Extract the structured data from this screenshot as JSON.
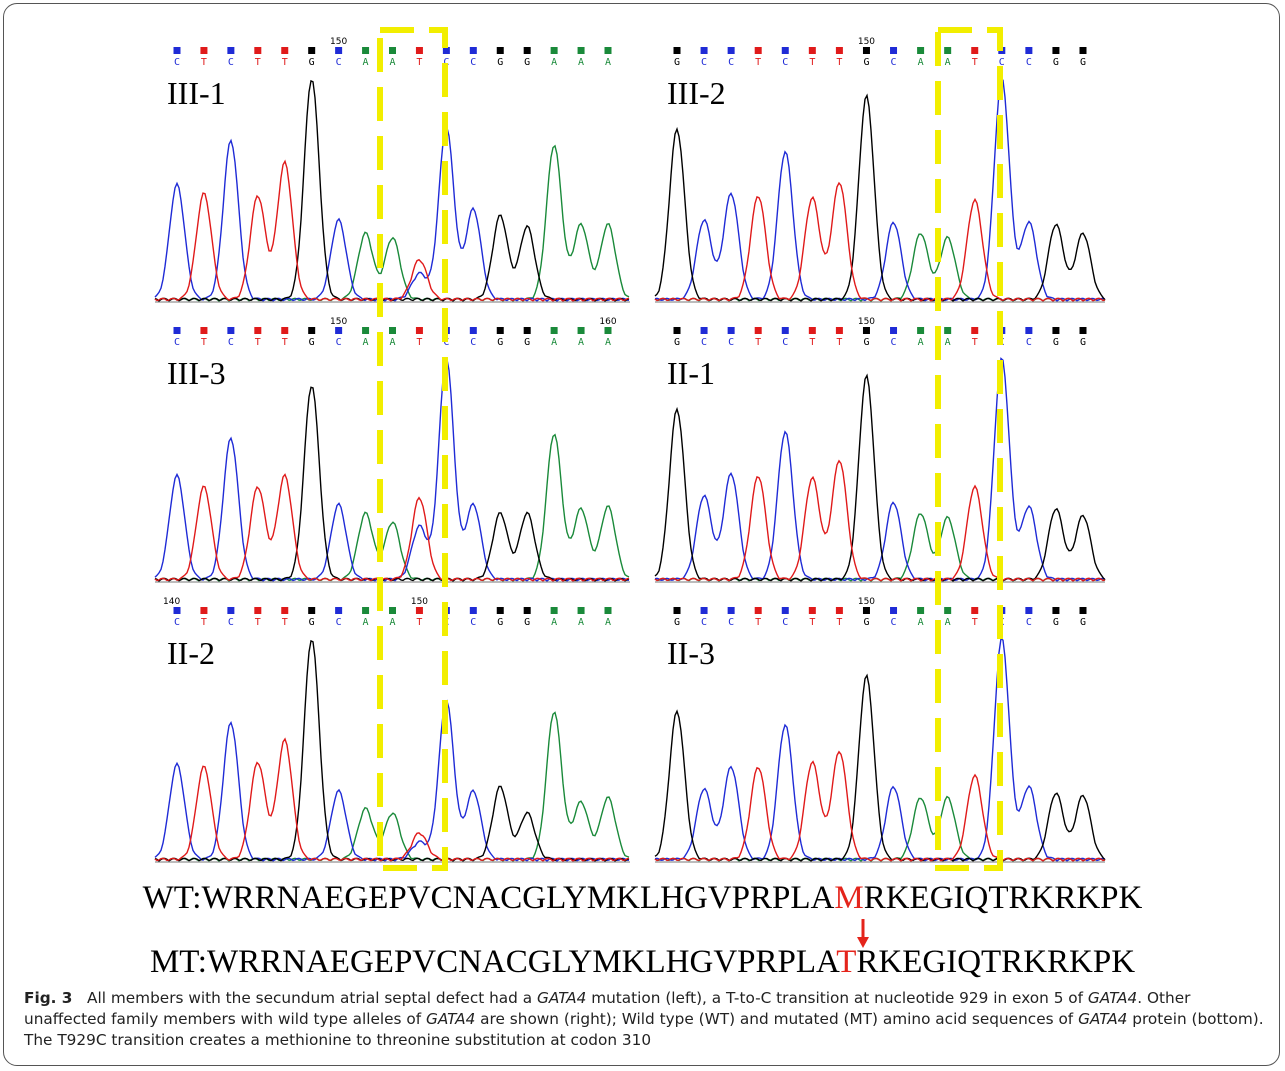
{
  "figure": {
    "panels": [
      {
        "id": "p1",
        "label": "III-1",
        "bases": "CTCTTGCAATCCGGAAA",
        "tick": "150",
        "tick_index": 6,
        "tick2": "",
        "tick2_index": -1,
        "start_tick": "",
        "heterozygous": true,
        "peaks": [
          {
            "b": "C",
            "h": 0.52
          },
          {
            "b": "T",
            "h": 0.48
          },
          {
            "b": "C",
            "h": 0.72
          },
          {
            "b": "T",
            "h": 0.47
          },
          {
            "b": "T",
            "h": 0.62
          },
          {
            "b": "G",
            "h": 1.0
          },
          {
            "b": "C",
            "h": 0.36
          },
          {
            "b": "A",
            "h": 0.3
          },
          {
            "b": "A",
            "h": 0.28
          },
          {
            "b": "T",
            "h": 0.18
          },
          {
            "b": "C",
            "h": 0.78
          },
          {
            "b": "C",
            "h": 0.41
          },
          {
            "b": "G",
            "h": 0.38
          },
          {
            "b": "G",
            "h": 0.33
          },
          {
            "b": "A",
            "h": 0.7
          },
          {
            "b": "A",
            "h": 0.34
          },
          {
            "b": "A",
            "h": 0.34
          }
        ]
      },
      {
        "id": "p2",
        "label": "III-2",
        "bases": "GCCTCTTGCAATCCGG",
        "tick": "150",
        "tick_index": 7,
        "tick2": "",
        "tick2_index": -1,
        "start_tick": "",
        "heterozygous": false,
        "peaks": [
          {
            "b": "G",
            "h": 0.77
          },
          {
            "b": "C",
            "h": 0.36
          },
          {
            "b": "C",
            "h": 0.48
          },
          {
            "b": "T",
            "h": 0.47
          },
          {
            "b": "C",
            "h": 0.67
          },
          {
            "b": "T",
            "h": 0.46
          },
          {
            "b": "T",
            "h": 0.53
          },
          {
            "b": "G",
            "h": 0.92
          },
          {
            "b": "C",
            "h": 0.35
          },
          {
            "b": "A",
            "h": 0.3
          },
          {
            "b": "A",
            "h": 0.28
          },
          {
            "b": "T",
            "h": 0.45
          },
          {
            "b": "C",
            "h": 1.0
          },
          {
            "b": "C",
            "h": 0.35
          },
          {
            "b": "G",
            "h": 0.34
          },
          {
            "b": "G",
            "h": 0.3
          }
        ]
      },
      {
        "id": "p3",
        "label": "III-3",
        "bases": "CTCTTGCAATCCGGAAA",
        "tick": "150",
        "tick_index": 6,
        "tick2": "160",
        "tick2_index": 16,
        "start_tick": "",
        "heterozygous": true,
        "peaks": [
          {
            "b": "C",
            "h": 0.47
          },
          {
            "b": "T",
            "h": 0.42
          },
          {
            "b": "C",
            "h": 0.64
          },
          {
            "b": "T",
            "h": 0.42
          },
          {
            "b": "T",
            "h": 0.47
          },
          {
            "b": "G",
            "h": 0.88
          },
          {
            "b": "C",
            "h": 0.34
          },
          {
            "b": "A",
            "h": 0.3
          },
          {
            "b": "A",
            "h": 0.26
          },
          {
            "b": "T",
            "h": 0.37
          },
          {
            "b": "C",
            "h": 1.0
          },
          {
            "b": "C",
            "h": 0.34
          },
          {
            "b": "G",
            "h": 0.3
          },
          {
            "b": "G",
            "h": 0.3
          },
          {
            "b": "A",
            "h": 0.66
          },
          {
            "b": "A",
            "h": 0.32
          },
          {
            "b": "A",
            "h": 0.33
          }
        ]
      },
      {
        "id": "p4",
        "label": "II-1",
        "bases": "GCCTCTTGCAATCCGG",
        "tick": "150",
        "tick_index": 7,
        "tick2": "",
        "tick2_index": -1,
        "start_tick": "",
        "heterozygous": false,
        "peaks": [
          {
            "b": "G",
            "h": 0.77
          },
          {
            "b": "C",
            "h": 0.38
          },
          {
            "b": "C",
            "h": 0.48
          },
          {
            "b": "T",
            "h": 0.47
          },
          {
            "b": "C",
            "h": 0.67
          },
          {
            "b": "T",
            "h": 0.46
          },
          {
            "b": "T",
            "h": 0.54
          },
          {
            "b": "G",
            "h": 0.92
          },
          {
            "b": "C",
            "h": 0.35
          },
          {
            "b": "A",
            "h": 0.3
          },
          {
            "b": "A",
            "h": 0.28
          },
          {
            "b": "T",
            "h": 0.42
          },
          {
            "b": "C",
            "h": 1.0
          },
          {
            "b": "C",
            "h": 0.33
          },
          {
            "b": "G",
            "h": 0.32
          },
          {
            "b": "G",
            "h": 0.29
          }
        ]
      },
      {
        "id": "p5",
        "label": "II-2",
        "bases": "CTCTTGCAATCCGGAAA",
        "tick": "150",
        "tick_index": 9,
        "tick2": "",
        "tick2_index": -1,
        "start_tick": "140",
        "heterozygous": true,
        "peaks": [
          {
            "b": "C",
            "h": 0.43
          },
          {
            "b": "T",
            "h": 0.42
          },
          {
            "b": "C",
            "h": 0.62
          },
          {
            "b": "T",
            "h": 0.44
          },
          {
            "b": "T",
            "h": 0.54
          },
          {
            "b": "G",
            "h": 1.0
          },
          {
            "b": "C",
            "h": 0.31
          },
          {
            "b": "A",
            "h": 0.23
          },
          {
            "b": "A",
            "h": 0.21
          },
          {
            "b": "T",
            "h": 0.12
          },
          {
            "b": "C",
            "h": 0.72
          },
          {
            "b": "C",
            "h": 0.31
          },
          {
            "b": "G",
            "h": 0.33
          },
          {
            "b": "G",
            "h": 0.21
          },
          {
            "b": "A",
            "h": 0.67
          },
          {
            "b": "A",
            "h": 0.26
          },
          {
            "b": "A",
            "h": 0.28
          }
        ]
      },
      {
        "id": "p6",
        "label": "II-3",
        "bases": "GCCTCTTGCAATCCGG",
        "tick": "150",
        "tick_index": 7,
        "tick2": "",
        "tick2_index": -1,
        "start_tick": "",
        "heterozygous": false,
        "peaks": [
          {
            "b": "G",
            "h": 0.67
          },
          {
            "b": "C",
            "h": 0.32
          },
          {
            "b": "C",
            "h": 0.42
          },
          {
            "b": "T",
            "h": 0.42
          },
          {
            "b": "C",
            "h": 0.61
          },
          {
            "b": "T",
            "h": 0.44
          },
          {
            "b": "T",
            "h": 0.49
          },
          {
            "b": "G",
            "h": 0.83
          },
          {
            "b": "C",
            "h": 0.33
          },
          {
            "b": "A",
            "h": 0.28
          },
          {
            "b": "A",
            "h": 0.28
          },
          {
            "b": "T",
            "h": 0.38
          },
          {
            "b": "C",
            "h": 1.0
          },
          {
            "b": "C",
            "h": 0.33
          },
          {
            "b": "G",
            "h": 0.3
          },
          {
            "b": "G",
            "h": 0.29
          }
        ]
      }
    ],
    "base_colors": {
      "A": "#1a8a3a",
      "C": "#1f2bd6",
      "G": "#000000",
      "T": "#e01a1a"
    },
    "box_color": "#f2ee00",
    "wt_prefix": "WT:WRRNAEGEPVCNACGLYMKLHGVPRPLA",
    "wt_mut": "M",
    "wt_suffix": "RKEGIQTRKRKPK",
    "mt_prefix": "MT:WRRNAEGEPVCNACGLYMKLHGVPRPLA",
    "mt_mut": "T",
    "mt_suffix": "RKEGIQTRKRKPK",
    "highlight_color": "#e4241b"
  },
  "caption": {
    "fig_label": "Fig. 3",
    "t1": "All members with the secundum atrial septal defect had a ",
    "gene": "GATA4",
    "t2": " mutation (left), a T-to-C transition at nucleotide 929 in exon 5 of ",
    "t3": ". Other unaffected family members with wild type alleles of ",
    "t4": " are shown (right); Wild type (WT) and mutated (MT) amino acid sequences of ",
    "t5": " protein (bottom). The T929C transition creates a methionine to threonine substitution at codon 310"
  }
}
